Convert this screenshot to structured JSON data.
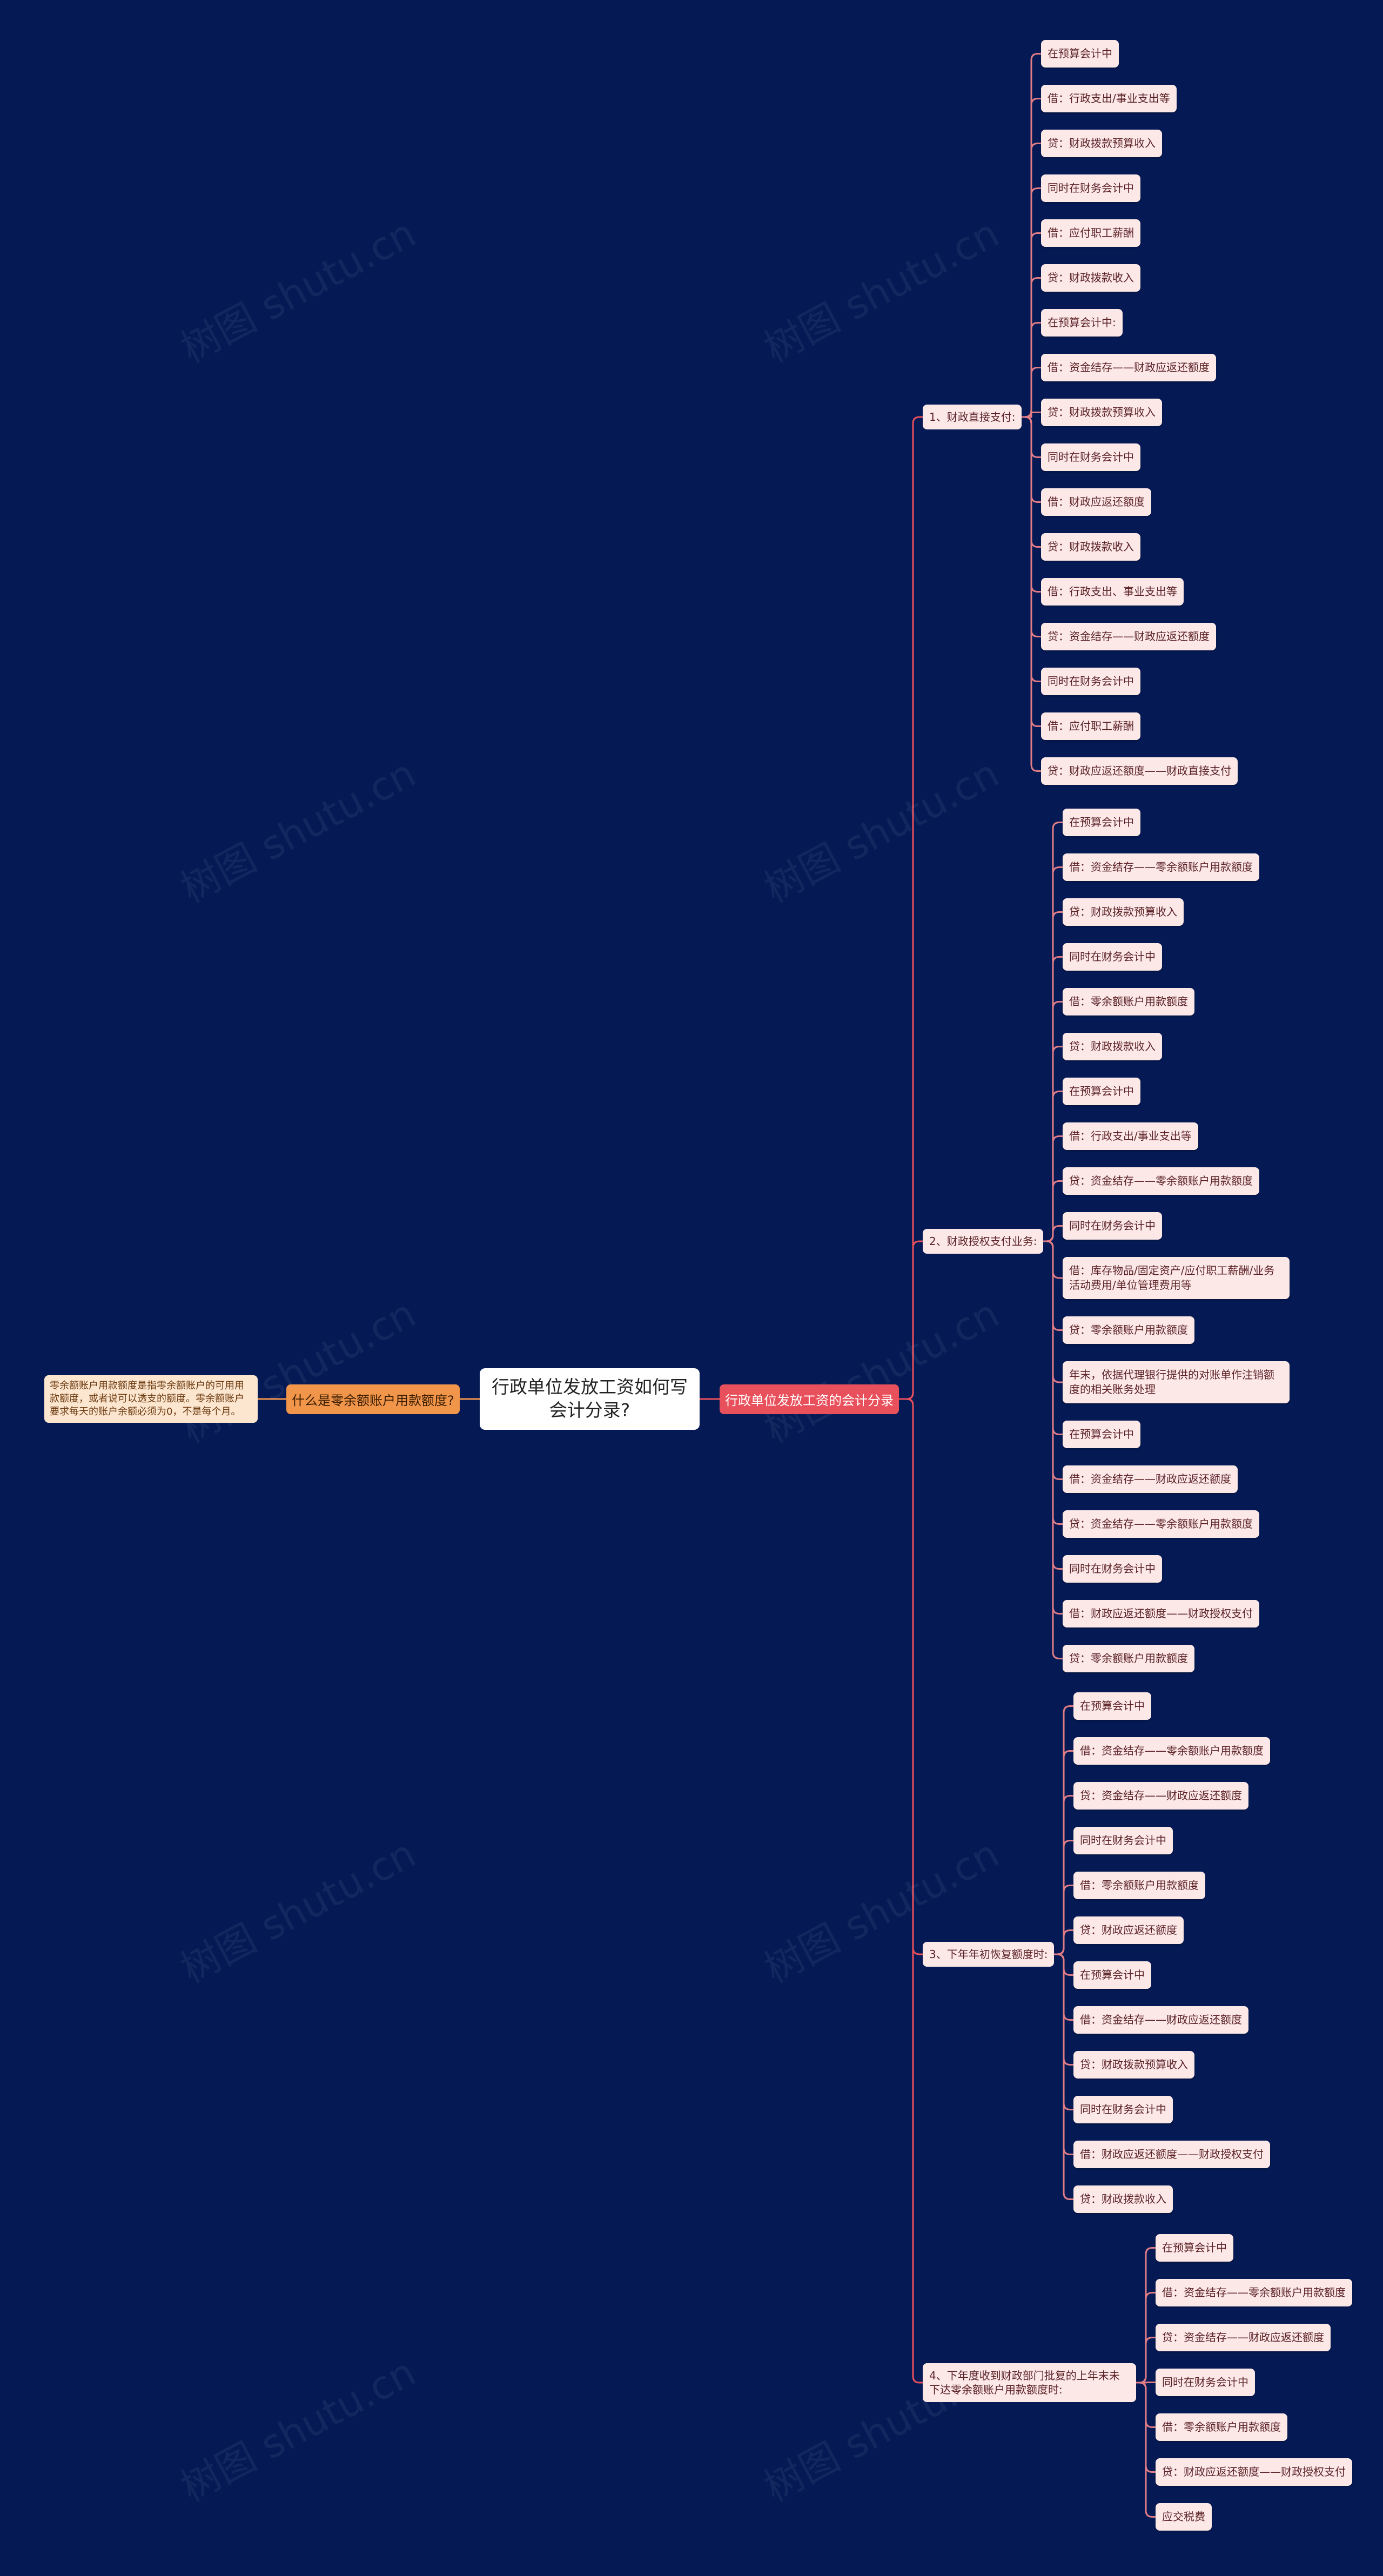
{
  "title": "行政单位发放工资如何写会计分录?",
  "watermark": "树图 shutu.cn",
  "left_branch": {
    "label": "什么是零余额账户用款额度?",
    "note": "零余额账户用款额度是指零余额账户的可用用款额度，或者说可以透支的额度。零余额账户要求每天的账户余额必须为0，不是每个月。"
  },
  "right_branch": {
    "label": "行政单位发放工资的会计分录",
    "groups": [
      {
        "label": "1、财政直接支付:",
        "items": [
          "在预算会计中",
          "借：行政支出/事业支出等",
          "贷：财政拨款预算收入",
          "同时在财务会计中",
          "借：应付职工薪酬",
          "贷：财政拨款收入",
          "在预算会计中:",
          "借：资金结存——财政应返还额度",
          "贷：财政拨款预算收入",
          "同时在财务会计中",
          "借：财政应返还额度",
          "贷：财政拨款收入",
          "借：行政支出、事业支出等",
          "贷：资金结存——财政应返还额度",
          "同时在财务会计中",
          "借：应付职工薪酬",
          "贷：财政应返还额度——财政直接支付"
        ]
      },
      {
        "label": "2、财政授权支付业务:",
        "items": [
          "在预算会计中",
          "借：资金结存——零余额账户用款额度",
          "贷：财政拨款预算收入",
          "同时在财务会计中",
          "借：零余额账户用款额度",
          "贷：财政拨款收入",
          "在预算会计中",
          "借：行政支出/事业支出等",
          "贷：资金结存——零余额账户用款额度",
          "同时在财务会计中",
          "借：库存物品/固定资产/应付职工薪酬/业务活动费用/单位管理费用等",
          "贷：零余额账户用款额度",
          "年末，依据代理银行提供的对账单作注销额度的相关账务处理",
          "在预算会计中",
          "借：资金结存——财政应返还额度",
          "贷：资金结存——零余额账户用款额度",
          "同时在财务会计中",
          "借：财政应返还额度——财政授权支付",
          "贷：零余额账户用款额度"
        ]
      },
      {
        "label": "3、下年年初恢复额度时:",
        "items": [
          "在预算会计中",
          "借：资金结存——零余额账户用款额度",
          "贷：资金结存——财政应返还额度",
          "同时在财务会计中",
          "借：零余额账户用款额度",
          "贷：财政应返还额度",
          "在预算会计中",
          "借：资金结存——财政应返还额度",
          "贷：财政拨款预算收入",
          "同时在财务会计中",
          "借：财政应返还额度——财政授权支付",
          "贷：财政拨款收入"
        ]
      },
      {
        "label": "4、下年度收到财政部门批复的上年末未下达零余额账户用款额度时:",
        "items": [
          "在预算会计中",
          "借：资金结存——零余额账户用款额度",
          "贷：资金结存——财政应返还额度",
          "同时在财务会计中",
          "借：零余额账户用款额度",
          "贷：财政应返还额度——财政授权支付",
          "应交税费"
        ]
      }
    ]
  }
}
